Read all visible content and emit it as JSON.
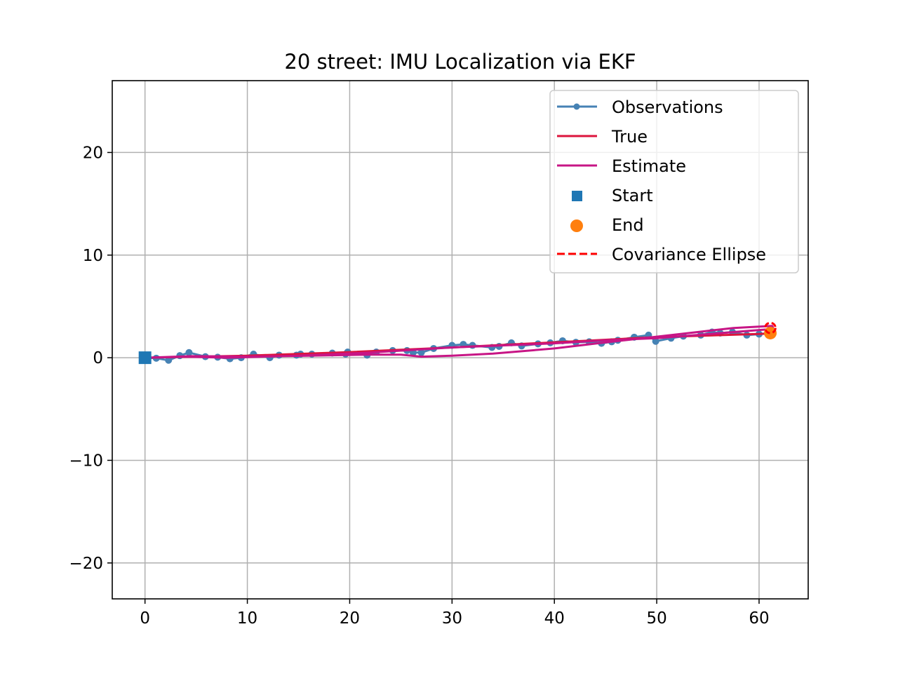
{
  "chart_data": {
    "type": "line",
    "title": "20 street: IMU Localization via EKF",
    "xlabel": "",
    "ylabel": "",
    "xlim": [
      -3.2,
      64.8
    ],
    "ylim": [
      -23.5,
      27.0
    ],
    "x_ticks": [
      0,
      10,
      20,
      30,
      40,
      50,
      60
    ],
    "x_tick_labels": [
      "0",
      "10",
      "20",
      "30",
      "40",
      "50",
      "60"
    ],
    "y_ticks": [
      -20,
      -10,
      0,
      10,
      20
    ],
    "y_tick_labels": [
      "−20",
      "−10",
      "0",
      "10",
      "20"
    ],
    "grid": true,
    "legend_position": "top-right",
    "legend": {
      "observations": "Observations",
      "true": "True",
      "estimate": "Estimate",
      "start": "Start",
      "end": "End",
      "covariance": "Covariance Ellipse"
    },
    "colors": {
      "observations": "#4682b4",
      "true": "#dc143c",
      "estimate": "#c71585",
      "start": "#1f77b4",
      "end": "#ff7f0e",
      "covariance": "#ff0000"
    },
    "series": [
      {
        "name": "Observations",
        "points": [
          [
            0,
            0
          ],
          [
            1.1,
            -0.05
          ],
          [
            2.3,
            -0.25
          ],
          [
            3.4,
            0.2
          ],
          [
            4.3,
            0.5
          ],
          [
            5.9,
            0.1
          ],
          [
            7.1,
            0.05
          ],
          [
            8.3,
            -0.1
          ],
          [
            9.4,
            0.0
          ],
          [
            10.6,
            0.35
          ],
          [
            12.2,
            0.0
          ],
          [
            13.1,
            0.25
          ],
          [
            14.8,
            0.25
          ],
          [
            15.2,
            0.35
          ],
          [
            16.3,
            0.35
          ],
          [
            18.3,
            0.45
          ],
          [
            19.6,
            0.35
          ],
          [
            19.8,
            0.55
          ],
          [
            21.7,
            0.25
          ],
          [
            22.6,
            0.55
          ],
          [
            24.2,
            0.7
          ],
          [
            25.6,
            0.7
          ],
          [
            26.2,
            0.5
          ],
          [
            27.0,
            0.5
          ],
          [
            28.2,
            0.9
          ],
          [
            30.0,
            1.2
          ],
          [
            31.1,
            1.3
          ],
          [
            32.0,
            1.2
          ],
          [
            33.9,
            1.0
          ],
          [
            34.6,
            1.1
          ],
          [
            35.8,
            1.45
          ],
          [
            36.8,
            1.15
          ],
          [
            38.4,
            1.35
          ],
          [
            39.6,
            1.45
          ],
          [
            40.8,
            1.65
          ],
          [
            42.1,
            1.5
          ],
          [
            43.4,
            1.55
          ],
          [
            44.6,
            1.4
          ],
          [
            45.6,
            1.55
          ],
          [
            46.2,
            1.7
          ],
          [
            47.8,
            2.0
          ],
          [
            49.2,
            2.2
          ],
          [
            49.9,
            1.6
          ],
          [
            51.4,
            1.9
          ],
          [
            52.6,
            2.1
          ],
          [
            54.3,
            2.2
          ],
          [
            55.4,
            2.5
          ],
          [
            56.2,
            2.4
          ],
          [
            57.4,
            2.5
          ],
          [
            58.8,
            2.2
          ],
          [
            60.0,
            2.3
          ],
          [
            61.0,
            2.4
          ]
        ]
      },
      {
        "name": "True",
        "points": [
          [
            0,
            0
          ],
          [
            10,
            0.2
          ],
          [
            20,
            0.55
          ],
          [
            30,
            1.0
          ],
          [
            40,
            1.5
          ],
          [
            50,
            2.0
          ],
          [
            61.0,
            2.35
          ]
        ]
      },
      {
        "name": "Estimate",
        "points": [
          [
            0,
            0
          ],
          [
            4.6,
            0.15
          ],
          [
            10,
            0.1
          ],
          [
            16,
            0.2
          ],
          [
            22,
            0.3
          ],
          [
            25,
            0.3
          ],
          [
            27,
            0.1
          ],
          [
            30,
            0.2
          ],
          [
            34,
            0.4
          ],
          [
            40,
            0.9
          ],
          [
            45,
            1.5
          ],
          [
            50,
            2.05
          ],
          [
            54,
            2.5
          ],
          [
            57.5,
            2.9
          ],
          [
            61.3,
            3.1
          ],
          [
            61.4,
            2.8
          ],
          [
            60,
            2.7
          ],
          [
            55,
            2.3
          ],
          [
            50,
            1.9
          ],
          [
            45,
            1.7
          ],
          [
            40,
            1.4
          ],
          [
            30,
            1.0
          ],
          [
            22,
            0.5
          ],
          [
            15,
            0.2
          ],
          [
            8,
            0.0
          ],
          [
            4,
            0.1
          ],
          [
            0,
            0
          ]
        ]
      }
    ],
    "start": [
      0,
      0
    ],
    "end": [
      61.1,
      2.4
    ],
    "covariance_ellipse": {
      "center": [
        61.1,
        2.9
      ],
      "width": 1.0,
      "height": 1.0
    }
  }
}
